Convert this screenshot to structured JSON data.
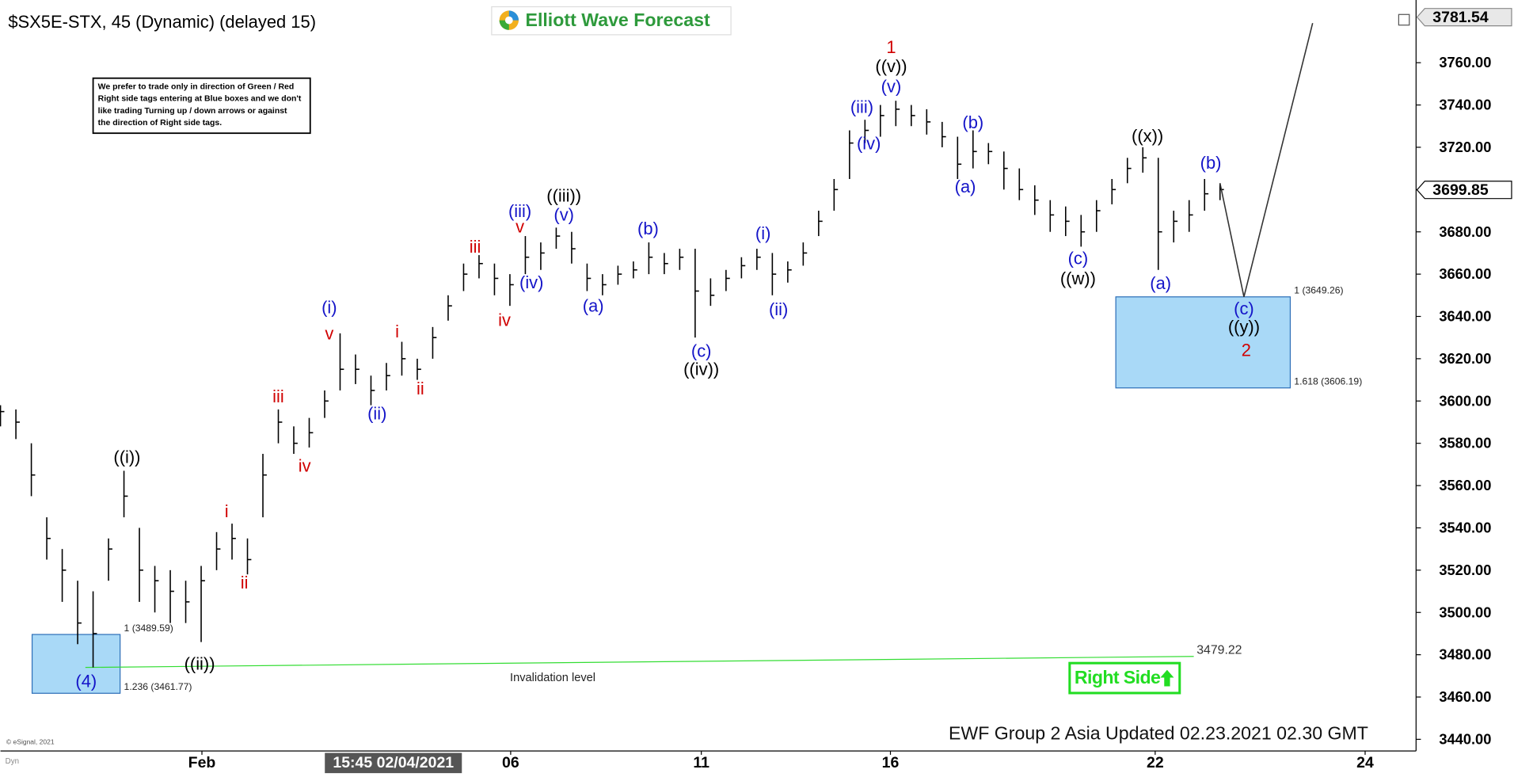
{
  "chart_data": {
    "type": "ohlc",
    "title": "$SX5E-STX, 45 (Dynamic) (delayed 15)",
    "logo": "Elliott Wave Forecast",
    "note": [
      "We prefer to trade only in direction of Green / Red",
      "Right side tags entering at Blue boxes and we don't",
      "like trading Turning up / down arrows or against",
      "the direction of Right side tags."
    ],
    "footer": "EWF Group 2 Asia Updated 02.23.2021 02.30 GMT",
    "copyright": "© eSignal, 2021",
    "badge": "Dyn",
    "right_side": "Right Side",
    "crosshair": {
      "label": "15:45 02/04/2021",
      "x": 50.9
    },
    "high_label": 3781.54,
    "last_price": 3699.85,
    "bar_color": "#000000",
    "x": [
      0,
      2,
      4,
      6,
      8,
      10,
      12,
      14,
      16,
      18,
      20,
      22,
      24,
      26,
      28,
      30,
      32,
      34,
      36,
      38,
      40,
      42,
      44,
      46,
      48,
      50,
      52,
      54,
      56,
      58,
      60,
      62,
      64,
      66,
      68,
      70,
      72,
      74,
      76,
      78,
      80,
      82,
      84,
      86,
      88,
      90,
      92,
      94,
      96,
      98,
      100,
      102,
      104,
      106,
      108,
      110,
      112,
      114,
      116,
      118,
      120,
      122,
      124,
      126,
      128,
      130,
      132,
      134,
      136,
      138,
      140,
      142,
      144,
      146,
      148,
      150,
      152,
      154,
      156,
      158
    ],
    "high": [
      3598,
      3596,
      3580,
      3545,
      3530,
      3515,
      3510,
      3535,
      3567,
      3540,
      3522,
      3520,
      3515,
      3522,
      3538,
      3542,
      3535,
      3575,
      3596,
      3588,
      3592,
      3605,
      3632,
      3622,
      3612,
      3618,
      3628,
      3620,
      3635,
      3650,
      3665,
      3669,
      3665,
      3660,
      3678,
      3675,
      3682,
      3680,
      3665,
      3660,
      3664,
      3666,
      3675,
      3670,
      3672,
      3672,
      3658,
      3662,
      3668,
      3672,
      3670,
      3666,
      3675,
      3690,
      3705,
      3728,
      3733,
      3740,
      3742,
      3740,
      3738,
      3732,
      3725,
      3728,
      3722,
      3718,
      3710,
      3702,
      3695,
      3692,
      3688,
      3695,
      3705,
      3715,
      3720,
      3715,
      3690,
      3695,
      3705,
      3703
    ],
    "low": [
      3588,
      3582,
      3555,
      3525,
      3505,
      3485,
      3474,
      3515,
      3545,
      3505,
      3500,
      3495,
      3495,
      3486,
      3520,
      3525,
      3518,
      3545,
      3580,
      3575,
      3578,
      3592,
      3605,
      3608,
      3598,
      3605,
      3612,
      3610,
      3620,
      3638,
      3652,
      3658,
      3650,
      3645,
      3660,
      3662,
      3672,
      3665,
      3652,
      3650,
      3655,
      3658,
      3660,
      3660,
      3662,
      3630,
      3645,
      3652,
      3658,
      3662,
      3650,
      3656,
      3664,
      3678,
      3690,
      3705,
      3722,
      3725,
      3730,
      3730,
      3726,
      3720,
      3705,
      3710,
      3712,
      3700,
      3695,
      3688,
      3680,
      3678,
      3673,
      3680,
      3693,
      3703,
      3708,
      3662,
      3675,
      3680,
      3690,
      3695
    ],
    "close": [
      3595,
      3590,
      3565,
      3535,
      3520,
      3495,
      3490,
      3530,
      3555,
      3520,
      3515,
      3510,
      3505,
      3515,
      3530,
      3535,
      3525,
      3565,
      3590,
      3580,
      3585,
      3600,
      3615,
      3615,
      3605,
      3612,
      3620,
      3615,
      3630,
      3645,
      3660,
      3665,
      3658,
      3655,
      3668,
      3670,
      3678,
      3672,
      3658,
      3655,
      3660,
      3662,
      3668,
      3665,
      3668,
      3652,
      3650,
      3658,
      3664,
      3668,
      3660,
      3662,
      3670,
      3685,
      3700,
      3722,
      3728,
      3735,
      3738,
      3735,
      3732,
      3725,
      3712,
      3718,
      3718,
      3710,
      3700,
      3695,
      3688,
      3685,
      3680,
      3690,
      3700,
      3710,
      3715,
      3680,
      3685,
      3688,
      3698,
      3700
    ],
    "xlim": [
      0,
      183.4
    ],
    "ylim": [
      3434.5,
      3786
    ],
    "xticks": [
      {
        "value": 26.1,
        "label": "Feb"
      },
      {
        "value": 66.1,
        "label": "06"
      },
      {
        "value": 90.8,
        "label": "11"
      },
      {
        "value": 115.3,
        "label": "16"
      },
      {
        "value": 149.6,
        "label": "22"
      },
      {
        "value": 176.8,
        "label": "24"
      }
    ],
    "yticks": [
      {
        "value": 3440,
        "label": "3440.00"
      },
      {
        "value": 3460,
        "label": "3460.00"
      },
      {
        "value": 3480,
        "label": "3480.00"
      },
      {
        "value": 3500,
        "label": "3500.00"
      },
      {
        "value": 3520,
        "label": "3520.00"
      },
      {
        "value": 3540,
        "label": "3540.00"
      },
      {
        "value": 3560,
        "label": "3560.00"
      },
      {
        "value": 3580,
        "label": "3580.00"
      },
      {
        "value": 3600,
        "label": "3600.00"
      },
      {
        "value": 3620,
        "label": "3620.00"
      },
      {
        "value": 3640,
        "label": "3640.00"
      },
      {
        "value": 3660,
        "label": "3660.00"
      },
      {
        "value": 3680,
        "label": "3680.00"
      },
      {
        "value": 3700,
        "label": "3700.00"
      },
      {
        "value": 3720,
        "label": "3720.00"
      },
      {
        "value": 3740,
        "label": "3740.00"
      },
      {
        "value": 3760,
        "label": "3760.00"
      }
    ],
    "zones": [
      {
        "top": 3489.59,
        "bottom": 3461.77,
        "x": [
          4.1,
          15.5
        ],
        "labels": [
          "1 (3489.59)",
          "1.236 (3461.77)"
        ],
        "color": "#a9d9f7"
      },
      {
        "top": 3649.26,
        "bottom": 3606.19,
        "x": [
          144.5,
          167.1
        ],
        "labels": [
          "1 (3649.26)",
          "1.618 (3606.19)"
        ],
        "color": "#a9d9f7"
      }
    ],
    "invalidation": {
      "label": "Invalidation level",
      "x": [
        11,
        154.6
      ],
      "y": [
        3474,
        3479.22
      ],
      "color": "#33dd33"
    },
    "projection": {
      "x": [
        158,
        161.1,
        170
      ],
      "y": [
        3703,
        3649.26,
        3778.7
      ],
      "color": "#333333"
    },
    "annotations": [
      {
        "text": "((i))",
        "x": 16.4,
        "y": 3572.8,
        "color": "#000000"
      },
      {
        "text": "(4)",
        "x": 11.1,
        "y": 3466.9,
        "color": "#1414c8"
      },
      {
        "text": "((ii))",
        "x": 25.8,
        "y": 3475.1,
        "color": "#000000"
      },
      {
        "text": "i",
        "x": 29.3,
        "y": 3547.3,
        "color": "#d00000"
      },
      {
        "text": "ii",
        "x": 31.6,
        "y": 3513.5,
        "color": "#d00000"
      },
      {
        "text": "iii",
        "x": 36,
        "y": 3601.6,
        "color": "#d00000"
      },
      {
        "text": "iv",
        "x": 39.4,
        "y": 3568.7,
        "color": "#d00000"
      },
      {
        "text": "(i)",
        "x": 42.6,
        "y": 3643.6,
        "color": "#1414c8"
      },
      {
        "text": "v",
        "x": 42.6,
        "y": 3631.3,
        "color": "#d00000"
      },
      {
        "text": "(ii)",
        "x": 48.8,
        "y": 3593.4,
        "color": "#1414c8"
      },
      {
        "text": "i",
        "x": 51.4,
        "y": 3632.2,
        "color": "#d00000"
      },
      {
        "text": "ii",
        "x": 54.4,
        "y": 3605.2,
        "color": "#d00000"
      },
      {
        "text": "iii",
        "x": 61.5,
        "y": 3672.4,
        "color": "#d00000"
      },
      {
        "text": "iv",
        "x": 65.3,
        "y": 3637.7,
        "color": "#d00000"
      },
      {
        "text": "(iii)",
        "x": 67.3,
        "y": 3689.2,
        "color": "#1414c8"
      },
      {
        "text": "v",
        "x": 67.3,
        "y": 3681.9,
        "color": "#d00000"
      },
      {
        "text": "(iv)",
        "x": 68.8,
        "y": 3655.5,
        "color": "#1414c8"
      },
      {
        "text": "((iii))",
        "x": 73,
        "y": 3696.5,
        "color": "#000000"
      },
      {
        "text": "(v)",
        "x": 73,
        "y": 3687.4,
        "color": "#1414c8"
      },
      {
        "text": "(a)",
        "x": 76.8,
        "y": 3644.5,
        "color": "#1414c8"
      },
      {
        "text": "(b)",
        "x": 83.9,
        "y": 3681,
        "color": "#1414c8"
      },
      {
        "text": "(c)",
        "x": 90.8,
        "y": 3623.1,
        "color": "#1414c8"
      },
      {
        "text": "((iv))",
        "x": 90.8,
        "y": 3614.4,
        "color": "#000000"
      },
      {
        "text": "(i)",
        "x": 98.8,
        "y": 3678.7,
        "color": "#1414c8"
      },
      {
        "text": "(ii)",
        "x": 100.8,
        "y": 3642.7,
        "color": "#1414c8"
      },
      {
        "text": "(iii)",
        "x": 111.6,
        "y": 3738.5,
        "color": "#1414c8"
      },
      {
        "text": "(iv)",
        "x": 112.5,
        "y": 3721.2,
        "color": "#1414c8"
      },
      {
        "text": "(v)",
        "x": 115.4,
        "y": 3748.1,
        "color": "#1414c8"
      },
      {
        "text": "((v))",
        "x": 115.4,
        "y": 3757.7,
        "color": "#000000"
      },
      {
        "text": "1",
        "x": 115.4,
        "y": 3766.8,
        "color": "#d00000"
      },
      {
        "text": "(a)",
        "x": 125,
        "y": 3700.7,
        "color": "#1414c8"
      },
      {
        "text": "(b)",
        "x": 126,
        "y": 3731.2,
        "color": "#1414c8"
      },
      {
        "text": "(c)",
        "x": 139.6,
        "y": 3666.9,
        "color": "#1414c8"
      },
      {
        "text": "((w))",
        "x": 139.6,
        "y": 3657.3,
        "color": "#000000"
      },
      {
        "text": "((x))",
        "x": 148.6,
        "y": 3724.8,
        "color": "#000000"
      },
      {
        "text": "(a)",
        "x": 150.3,
        "y": 3655,
        "color": "#1414c8"
      },
      {
        "text": "(b)",
        "x": 156.8,
        "y": 3712.1,
        "color": "#1414c8"
      },
      {
        "text": "(c)",
        "x": 161.1,
        "y": 3643.1,
        "color": "#1414c8"
      },
      {
        "text": "((y))",
        "x": 161.1,
        "y": 3634.5,
        "color": "#000000"
      },
      {
        "text": "2",
        "x": 161.4,
        "y": 3623.5,
        "color": "#d00000"
      }
    ]
  }
}
